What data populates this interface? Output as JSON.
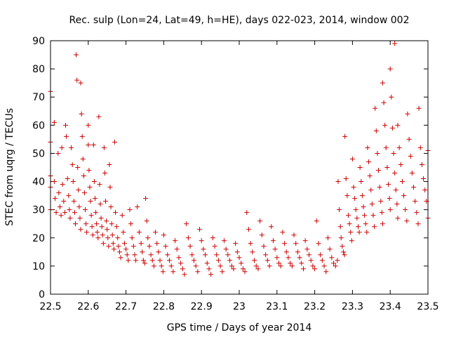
{
  "chart_data": {
    "type": "scatter",
    "title": "Rec. sulp (Lon=24, Lat=49, h=HE), days 022-023, 2014, window 002",
    "xlabel": "GPS time / Days of year 2014",
    "ylabel": "STEC from uqrg / TECUs",
    "xlim": [
      22.5,
      23.5
    ],
    "ylim": [
      0,
      90
    ],
    "x_ticks": [
      22.5,
      22.6,
      22.7,
      22.8,
      22.9,
      23.0,
      23.1,
      23.2,
      23.3,
      23.4,
      23.5
    ],
    "x_tick_labels": [
      "22.5",
      "22.6",
      "22.7",
      "22.8",
      "22.9",
      "23",
      "23.1",
      "23.2",
      "23.3",
      "23.4",
      "23.5"
    ],
    "y_ticks": [
      0,
      10,
      20,
      30,
      40,
      50,
      60,
      70,
      80,
      90
    ],
    "y_tick_labels": [
      "0",
      "10",
      "20",
      "30",
      "40",
      "50",
      "60",
      "70",
      "80",
      "90"
    ],
    "marker": "+",
    "color": "#cc0000",
    "points": [
      [
        22.5,
        72
      ],
      [
        22.5,
        54
      ],
      [
        22.5,
        42
      ],
      [
        22.5,
        38
      ],
      [
        22.5,
        30
      ],
      [
        22.51,
        61
      ],
      [
        22.51,
        40
      ],
      [
        22.512,
        34
      ],
      [
        22.515,
        29
      ],
      [
        22.52,
        50
      ],
      [
        22.522,
        36
      ],
      [
        22.525,
        31
      ],
      [
        22.528,
        28
      ],
      [
        22.53,
        52
      ],
      [
        22.532,
        39
      ],
      [
        22.535,
        33
      ],
      [
        22.538,
        29
      ],
      [
        22.54,
        60
      ],
      [
        22.542,
        56
      ],
      [
        22.545,
        41
      ],
      [
        22.548,
        35
      ],
      [
        22.55,
        30
      ],
      [
        22.552,
        27
      ],
      [
        22.555,
        52
      ],
      [
        22.558,
        46
      ],
      [
        22.56,
        40
      ],
      [
        22.562,
        33
      ],
      [
        22.564,
        29
      ],
      [
        22.566,
        25
      ],
      [
        22.568,
        85
      ],
      [
        22.57,
        76
      ],
      [
        22.572,
        45
      ],
      [
        22.574,
        37
      ],
      [
        22.576,
        31
      ],
      [
        22.578,
        27
      ],
      [
        22.58,
        23
      ],
      [
        22.58,
        75
      ],
      [
        22.582,
        64
      ],
      [
        22.584,
        56
      ],
      [
        22.586,
        48
      ],
      [
        22.588,
        42
      ],
      [
        22.59,
        36
      ],
      [
        22.592,
        30
      ],
      [
        22.594,
        25
      ],
      [
        22.596,
        22
      ],
      [
        22.6,
        60
      ],
      [
        22.6,
        53
      ],
      [
        22.602,
        44
      ],
      [
        22.604,
        38
      ],
      [
        22.606,
        33
      ],
      [
        22.608,
        28
      ],
      [
        22.61,
        24
      ],
      [
        22.612,
        21
      ],
      [
        22.614,
        53
      ],
      [
        22.616,
        40
      ],
      [
        22.618,
        34
      ],
      [
        22.62,
        29
      ],
      [
        22.622,
        25
      ],
      [
        22.624,
        22
      ],
      [
        22.626,
        20
      ],
      [
        22.628,
        63
      ],
      [
        22.63,
        39
      ],
      [
        22.632,
        32
      ],
      [
        22.634,
        27
      ],
      [
        22.636,
        24
      ],
      [
        22.638,
        21
      ],
      [
        22.64,
        18
      ],
      [
        22.642,
        52
      ],
      [
        22.644,
        43
      ],
      [
        22.646,
        33
      ],
      [
        22.648,
        26
      ],
      [
        22.65,
        23
      ],
      [
        22.652,
        20
      ],
      [
        22.654,
        17
      ],
      [
        22.656,
        46
      ],
      [
        22.658,
        38
      ],
      [
        22.66,
        31
      ],
      [
        22.662,
        25
      ],
      [
        22.664,
        21
      ],
      [
        22.666,
        18
      ],
      [
        22.668,
        16
      ],
      [
        22.67,
        54
      ],
      [
        22.672,
        29
      ],
      [
        22.675,
        24
      ],
      [
        22.678,
        20
      ],
      [
        22.68,
        17
      ],
      [
        22.683,
        15
      ],
      [
        22.686,
        13
      ],
      [
        22.69,
        28
      ],
      [
        22.693,
        22
      ],
      [
        22.696,
        18
      ],
      [
        22.7,
        16
      ],
      [
        22.703,
        14
      ],
      [
        22.706,
        12
      ],
      [
        22.71,
        30
      ],
      [
        22.713,
        25
      ],
      [
        22.716,
        20
      ],
      [
        22.72,
        17
      ],
      [
        22.723,
        14
      ],
      [
        22.726,
        12
      ],
      [
        22.73,
        31
      ],
      [
        22.735,
        22
      ],
      [
        22.74,
        18
      ],
      [
        22.743,
        15
      ],
      [
        22.746,
        12
      ],
      [
        22.75,
        11
      ],
      [
        22.752,
        34
      ],
      [
        22.755,
        26
      ],
      [
        22.758,
        20
      ],
      [
        22.762,
        17
      ],
      [
        22.766,
        14
      ],
      [
        22.77,
        12
      ],
      [
        22.774,
        10
      ],
      [
        22.778,
        22
      ],
      [
        22.782,
        18
      ],
      [
        22.786,
        15
      ],
      [
        22.79,
        12
      ],
      [
        22.794,
        10
      ],
      [
        22.798,
        8
      ],
      [
        22.8,
        21
      ],
      [
        22.805,
        17
      ],
      [
        22.81,
        14
      ],
      [
        22.815,
        12
      ],
      [
        22.82,
        10
      ],
      [
        22.825,
        8
      ],
      [
        22.83,
        19
      ],
      [
        22.835,
        16
      ],
      [
        22.84,
        13
      ],
      [
        22.845,
        11
      ],
      [
        22.85,
        9
      ],
      [
        22.855,
        7
      ],
      [
        22.86,
        25
      ],
      [
        22.865,
        20
      ],
      [
        22.87,
        17
      ],
      [
        22.875,
        14
      ],
      [
        22.88,
        12
      ],
      [
        22.885,
        10
      ],
      [
        22.89,
        8
      ],
      [
        22.895,
        23
      ],
      [
        22.9,
        19
      ],
      [
        22.905,
        16
      ],
      [
        22.91,
        14
      ],
      [
        22.915,
        11
      ],
      [
        22.92,
        9
      ],
      [
        22.925,
        7
      ],
      [
        22.93,
        20
      ],
      [
        22.935,
        17
      ],
      [
        22.94,
        14
      ],
      [
        22.945,
        12
      ],
      [
        22.95,
        10
      ],
      [
        22.955,
        8
      ],
      [
        22.96,
        19
      ],
      [
        22.965,
        16
      ],
      [
        22.97,
        14
      ],
      [
        22.975,
        12
      ],
      [
        22.98,
        10
      ],
      [
        22.985,
        9
      ],
      [
        22.99,
        18
      ],
      [
        22.995,
        15
      ],
      [
        23.0,
        13
      ],
      [
        23.005,
        11
      ],
      [
        23.01,
        9
      ],
      [
        23.015,
        8
      ],
      [
        23.02,
        29
      ],
      [
        23.025,
        23
      ],
      [
        23.03,
        18
      ],
      [
        23.035,
        15
      ],
      [
        23.04,
        12
      ],
      [
        23.045,
        10
      ],
      [
        23.05,
        9
      ],
      [
        23.055,
        26
      ],
      [
        23.06,
        21
      ],
      [
        23.065,
        17
      ],
      [
        23.07,
        14
      ],
      [
        23.075,
        12
      ],
      [
        23.08,
        10
      ],
      [
        23.085,
        24
      ],
      [
        23.09,
        19
      ],
      [
        23.095,
        16
      ],
      [
        23.1,
        13
      ],
      [
        23.105,
        11
      ],
      [
        23.11,
        10
      ],
      [
        23.115,
        22
      ],
      [
        23.12,
        18
      ],
      [
        23.125,
        15
      ],
      [
        23.13,
        13
      ],
      [
        23.135,
        11
      ],
      [
        23.14,
        10
      ],
      [
        23.145,
        21
      ],
      [
        23.15,
        18
      ],
      [
        23.155,
        15
      ],
      [
        23.16,
        13
      ],
      [
        23.165,
        11
      ],
      [
        23.17,
        9
      ],
      [
        23.175,
        19
      ],
      [
        23.18,
        16
      ],
      [
        23.185,
        14
      ],
      [
        23.19,
        12
      ],
      [
        23.195,
        10
      ],
      [
        23.2,
        9
      ],
      [
        23.205,
        26
      ],
      [
        23.21,
        18
      ],
      [
        23.215,
        14
      ],
      [
        23.22,
        12
      ],
      [
        23.225,
        10
      ],
      [
        23.23,
        8
      ],
      [
        23.235,
        20
      ],
      [
        23.24,
        16
      ],
      [
        23.245,
        13
      ],
      [
        23.25,
        11
      ],
      [
        23.255,
        10
      ],
      [
        23.26,
        12
      ],
      [
        23.262,
        40
      ],
      [
        23.265,
        30
      ],
      [
        23.268,
        24
      ],
      [
        23.27,
        20
      ],
      [
        23.273,
        17
      ],
      [
        23.276,
        15
      ],
      [
        23.279,
        14
      ],
      [
        23.28,
        56
      ],
      [
        23.283,
        41
      ],
      [
        23.286,
        35
      ],
      [
        23.289,
        28
      ],
      [
        23.292,
        25
      ],
      [
        23.295,
        22
      ],
      [
        23.298,
        19
      ],
      [
        23.3,
        48
      ],
      [
        23.303,
        38
      ],
      [
        23.306,
        34
      ],
      [
        23.309,
        30
      ],
      [
        23.312,
        27
      ],
      [
        23.315,
        24
      ],
      [
        23.318,
        22
      ],
      [
        23.32,
        45
      ],
      [
        23.323,
        40
      ],
      [
        23.326,
        35
      ],
      [
        23.329,
        31
      ],
      [
        23.332,
        28
      ],
      [
        23.335,
        25
      ],
      [
        23.338,
        22
      ],
      [
        23.34,
        52
      ],
      [
        23.343,
        47
      ],
      [
        23.346,
        42
      ],
      [
        23.349,
        37
      ],
      [
        23.352,
        32
      ],
      [
        23.355,
        28
      ],
      [
        23.358,
        24
      ],
      [
        23.36,
        66
      ],
      [
        23.363,
        58
      ],
      [
        23.366,
        50
      ],
      [
        23.369,
        44
      ],
      [
        23.372,
        38
      ],
      [
        23.375,
        33
      ],
      [
        23.378,
        29
      ],
      [
        23.38,
        25
      ],
      [
        23.38,
        75
      ],
      [
        23.383,
        68
      ],
      [
        23.386,
        60
      ],
      [
        23.389,
        52
      ],
      [
        23.392,
        45
      ],
      [
        23.395,
        39
      ],
      [
        23.398,
        34
      ],
      [
        23.4,
        30
      ],
      [
        23.4,
        80
      ],
      [
        23.403,
        70
      ],
      [
        23.406,
        59
      ],
      [
        23.409,
        50
      ],
      [
        23.412,
        43
      ],
      [
        23.415,
        37
      ],
      [
        23.418,
        32
      ],
      [
        23.42,
        27
      ],
      [
        23.412,
        89
      ],
      [
        23.42,
        60
      ],
      [
        23.424,
        52
      ],
      [
        23.428,
        46
      ],
      [
        23.432,
        40
      ],
      [
        23.436,
        35
      ],
      [
        23.44,
        30
      ],
      [
        23.444,
        26
      ],
      [
        23.446,
        64
      ],
      [
        23.45,
        55
      ],
      [
        23.454,
        49
      ],
      [
        23.458,
        43
      ],
      [
        23.462,
        38
      ],
      [
        23.466,
        33
      ],
      [
        23.47,
        29
      ],
      [
        23.474,
        25
      ],
      [
        23.476,
        66
      ],
      [
        23.48,
        52
      ],
      [
        23.484,
        46
      ],
      [
        23.488,
        41
      ],
      [
        23.492,
        37
      ],
      [
        23.496,
        33
      ],
      [
        23.5,
        27
      ],
      [
        23.5,
        51
      ]
    ]
  }
}
